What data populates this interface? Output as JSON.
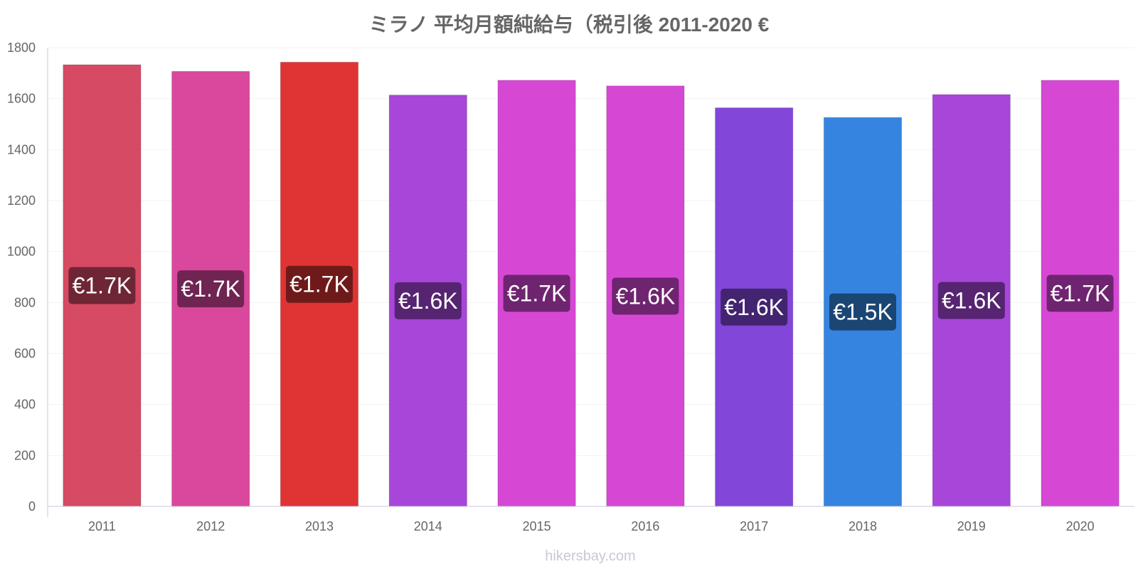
{
  "chart_data": {
    "type": "bar",
    "title": "ミラノ 平均月額純給与（税引後 2011-2020 €",
    "categories": [
      "2011",
      "2012",
      "2013",
      "2014",
      "2015",
      "2016",
      "2017",
      "2018",
      "2019",
      "2020"
    ],
    "values": [
      1733,
      1707,
      1743,
      1614,
      1672,
      1650,
      1564,
      1526,
      1616,
      1672
    ],
    "data_labels": [
      "€1.7K",
      "€1.7K",
      "€1.7K",
      "€1.6K",
      "€1.7K",
      "€1.6K",
      "€1.6K",
      "€1.5K",
      "€1.6K",
      "€1.7K"
    ],
    "colors": [
      "#d64a64",
      "#d9489c",
      "#e03333",
      "#a846d9",
      "#d648d4",
      "#d648d4",
      "#8246d9",
      "#3584e0",
      "#a846d9",
      "#d648d4"
    ],
    "label_bg_colors": [
      "#6f2634",
      "#702452",
      "#6f1a1a",
      "#562470",
      "#6f2470",
      "#6f2470",
      "#432470",
      "#1b4673",
      "#562470",
      "#6f2470"
    ],
    "ylim": [
      0,
      1800
    ],
    "yticks": [
      0,
      200,
      400,
      600,
      800,
      1000,
      1200,
      1400,
      1600,
      1800
    ],
    "grid": true,
    "xlabel": "",
    "ylabel": ""
  },
  "credit": "hikersbay.com"
}
